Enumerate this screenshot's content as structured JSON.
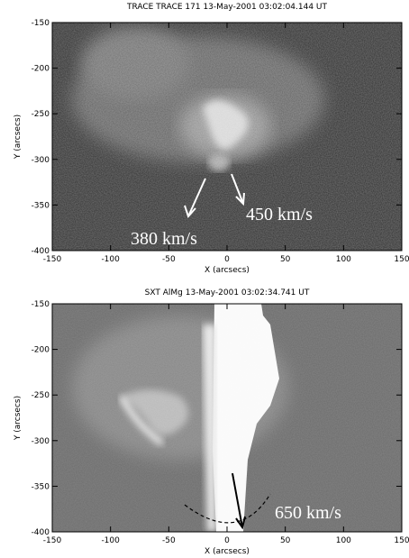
{
  "panels": [
    {
      "title": "TRACE TRACE 171 13-May-2001 03:02:04.144 UT",
      "xlabel": "X (arcsecs)",
      "ylabel": "Y (arcsecs)",
      "xlim": [
        -150,
        150
      ],
      "ylim": [
        -400,
        -150
      ],
      "xticks": [
        -150,
        -100,
        -50,
        0,
        50,
        100,
        150
      ],
      "yticks": [
        -150,
        -200,
        -250,
        -300,
        -350,
        -400
      ],
      "annotations": [
        "380 km/s",
        "450 km/s"
      ]
    },
    {
      "title": "SXT AlMg 13-May-2001 03:02:34.741 UT",
      "xlabel": "X (arcsecs)",
      "ylabel": "Y (arcsecs)",
      "xlim": [
        -150,
        150
      ],
      "ylim": [
        -400,
        -150
      ],
      "xticks": [
        -150,
        -100,
        -50,
        0,
        50,
        100,
        150
      ],
      "yticks": [
        -150,
        -200,
        -250,
        -300,
        -350,
        -400
      ],
      "annotations": [
        "650 km/s"
      ]
    }
  ]
}
